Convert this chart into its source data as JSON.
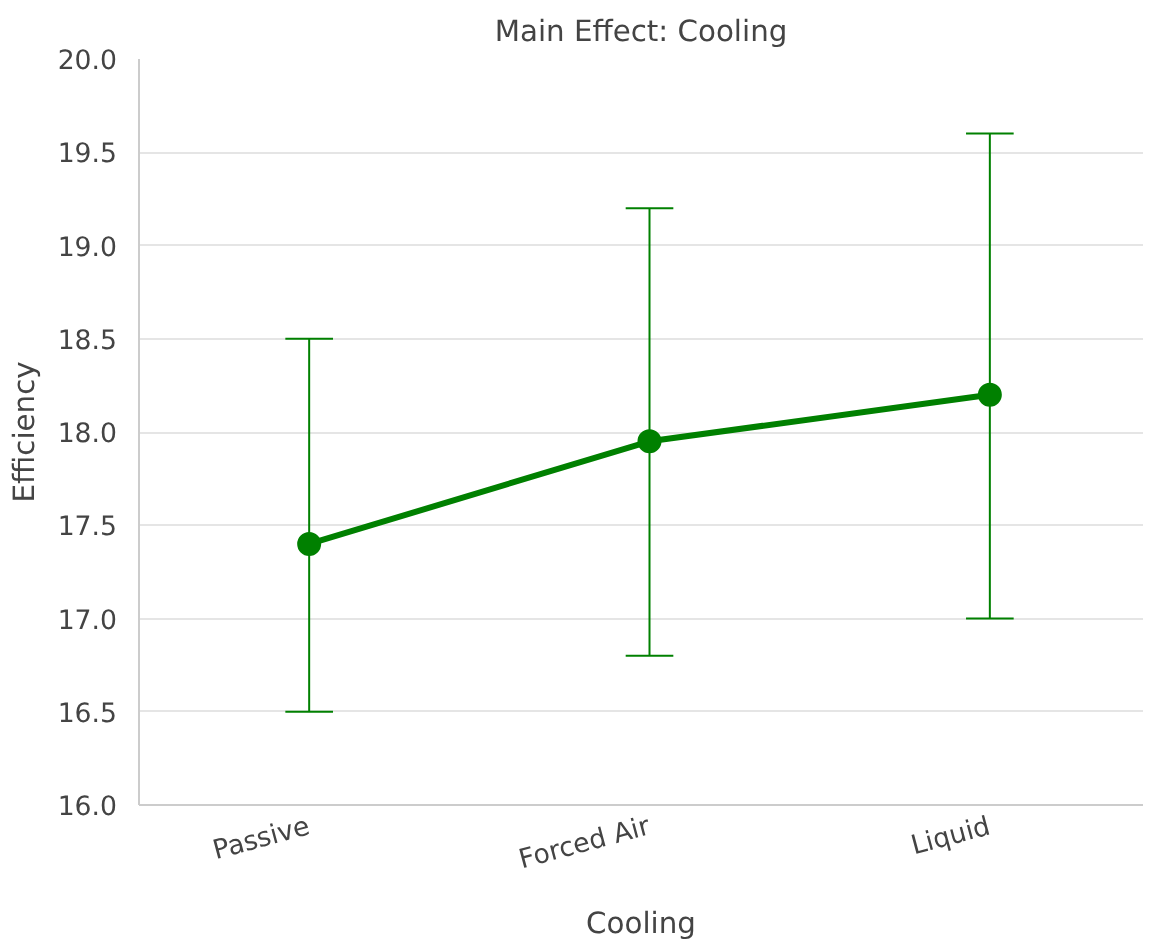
{
  "chart_data": {
    "type": "line",
    "title": "Main Effect: Cooling",
    "xlabel": "Cooling",
    "ylabel": "Efficiency",
    "categories": [
      "Passive",
      "Forced Air",
      "Liquid"
    ],
    "series": [
      {
        "color": "#008000",
        "values": [
          17.4,
          17.95,
          18.2
        ],
        "errors": [
          [
            16.5,
            18.5
          ],
          [
            16.8,
            19.2
          ],
          [
            17.0,
            19.6
          ]
        ]
      }
    ],
    "ylim": [
      16.0,
      20.0
    ],
    "yticks": [
      {
        "value": 16.0,
        "label": "16.0"
      },
      {
        "value": 16.5,
        "label": "16.5"
      },
      {
        "value": 17.0,
        "label": "17.0"
      },
      {
        "value": 17.5,
        "label": "17.5"
      },
      {
        "value": 18.0,
        "label": "18.0"
      },
      {
        "value": 18.5,
        "label": "18.5"
      },
      {
        "value": 19.0,
        "label": "19.0"
      },
      {
        "value": 19.5,
        "label": "19.5"
      },
      {
        "value": 20.0,
        "label": "20.0"
      }
    ],
    "grid": "y",
    "marker": "circle",
    "line_style": "solid"
  }
}
